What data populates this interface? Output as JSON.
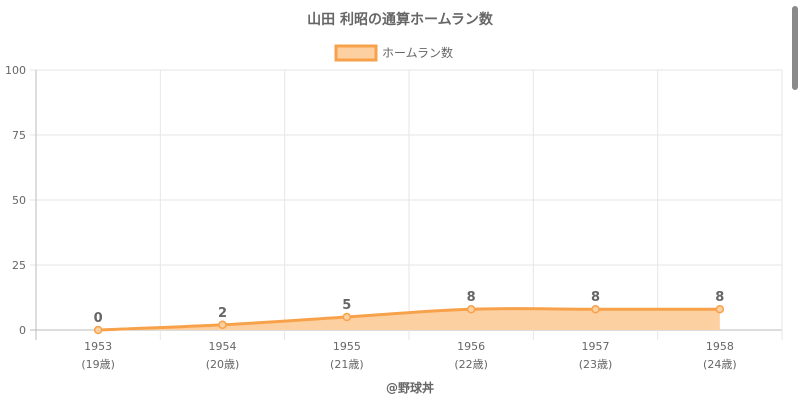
{
  "chart_data": {
    "type": "area",
    "title": "山田 利昭の通算ホームラン数",
    "legend": {
      "label": "ホームラン数",
      "position": "top-center"
    },
    "categories": [
      "1953",
      "1954",
      "1955",
      "1956",
      "1957",
      "1958"
    ],
    "sublabels": [
      "(19歳)",
      "(20歳)",
      "(21歳)",
      "(22歳)",
      "(23歳)",
      "(24歳)"
    ],
    "series": [
      {
        "name": "ホームラン数",
        "values": [
          0,
          2,
          5,
          8,
          8,
          8
        ]
      }
    ],
    "data_labels": [
      "0",
      "2",
      "5",
      "8",
      "8",
      "8"
    ],
    "yticks": [
      "100",
      "75",
      "50",
      "25",
      "0"
    ],
    "ylim": [
      0,
      100
    ],
    "grid": true,
    "colors": {
      "line": "#f7a24b",
      "fill": "#fdd0a1",
      "text": "#666666",
      "grid": "#e6e6e6"
    }
  },
  "footer": {
    "credit": "@野球丼"
  }
}
